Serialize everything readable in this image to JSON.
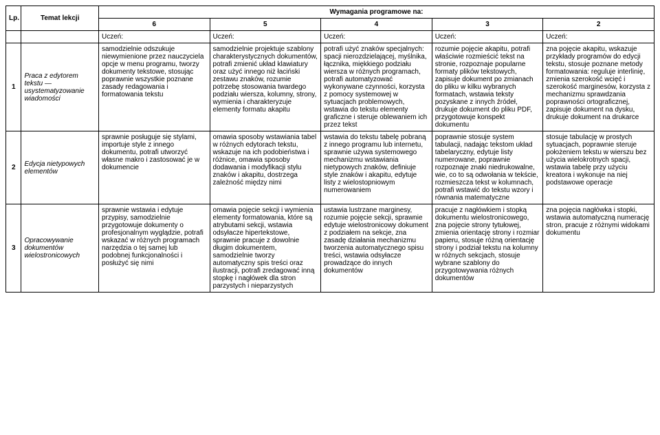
{
  "headers": {
    "lp": "Lp.",
    "temat": "Temat lekcji",
    "wymagania": "Wymagania programowe na:",
    "grades": [
      "6",
      "5",
      "4",
      "3",
      "2"
    ],
    "uczen": "Uczeń:"
  },
  "rows": [
    {
      "lp": "1",
      "temat": "Praca z edytorem tekstu — usystematyzowanie wiadomości",
      "c6": "samodzielnie odszukuje niewymienione przez nauczyciela opcje w menu programu, tworzy dokumenty tekstowe, stosując poprawnie wszystkie poznane zasady redagowania i formatowania tekstu",
      "c5": "samodzielnie projektuje szablony charakterystycznych dokumentów, potrafi zmienić układ klawiatury oraz użyć innego niż łaciński zestawu znaków, rozumie potrzebę stosowania twardego podziału wiersza, kolumny, strony, wymienia i charakteryzuje elementy formatu akapitu",
      "c4": "potrafi użyć znaków specjalnych: spacji nierozdzielającej, myślnika, łącznika, miękkiego podziału wiersza w różnych programach, potrafi automatyzować wykonywane czynności, korzysta z pomocy systemowej w sytuacjach problemowych, wstawia do tekstu elementy graficzne i steruje oblewaniem ich przez tekst",
      "c3": "rozumie pojęcie akapitu, potrafi właściwie rozmieścić tekst na stronie, rozpoznaje popularne formaty plików tekstowych, zapisuje dokument po zmianach do pliku w kilku wybranych formatach, wstawia teksty pozyskane z innych źródeł, drukuje dokument do pliku PDF, przygotowuje konspekt dokumentu",
      "c2": "zna pojęcie akapitu, wskazuje przykłady programów do edycji tekstu, stosuje poznane metody formatowania: reguluje interlinię, zmienia szerokość wcięć i szerokość marginesów, korzysta z mechanizmu sprawdzania poprawności ortograficznej, zapisuje dokument na dysku, drukuje dokument na drukarce"
    },
    {
      "lp": "2",
      "temat": "Edycja nietypowych elementów",
      "c6": "sprawnie posługuje się stylami, importuje style z innego dokumentu, potrafi utworzyć własne makro i zastosować je w dokumencie",
      "c5": "omawia sposoby wstawiania tabel w różnych edytorach tekstu, wskazuje na ich podobieństwa i różnice, omawia sposoby dodawania i modyfikacji stylu znaków i akapitu, dostrzega zależność między nimi",
      "c4": "wstawia do tekstu tabelę pobraną z innego programu lub internetu, sprawnie używa systemowego mechanizmu wstawiania nietypowych znaków, definiuje style znaków i akapitu, edytuje listy z wielostopniowym numerowaniem",
      "c3": "poprawnie stosuje system tabulacji, nadając tekstom układ tabelaryczny, edytuje listy numerowane, poprawnie rozpoznaje znaki niedrukowalne, wie, co to są odwołania w tekście, rozmieszcza tekst w kolumnach, potrafi wstawić do tekstu wzory i równania matematyczne",
      "c2": "stosuje tabulację w prostych sytuacjach, poprawnie steruje położeniem tekstu w wierszu bez użycia wielokrotnych spacji, wstawia tabelę przy użyciu kreatora i wykonuje na niej podstawowe operacje"
    },
    {
      "lp": "3",
      "temat": "Opracowywanie dokumentów wielostronicowych",
      "c6": "sprawnie wstawia i edytuje przypisy, samodzielnie przygotowuje dokumenty o profesjonalnym wyglądzie, potrafi wskazać w różnych programach narzędzia o tej samej lub podobnej funkcjonalności i posłużyć się nimi",
      "c5": "omawia pojęcie sekcji i wymienia elementy formatowania, które są atrybutami sekcji, wstawia odsyłacze hipertekstowe, sprawnie pracuje z dowolnie długim dokumentem, samodzielnie tworzy automatyczny spis treści oraz ilustracji, potrafi zredagować inną stopkę i nagłówek dla stron parzystych i nieparzystych",
      "c4": "ustawia lustrzane marginesy, rozumie pojęcie sekcji, sprawnie edytuje wielostronicowy dokument z podziałem na sekcje, zna zasadę działania mechanizmu tworzenia automatycznego spisu treści, wstawia odsyłacze prowadzące do innych dokumentów",
      "c3": "pracuje z nagłówkiem i stopką dokumentu wielostronicowego, zna pojęcie strony tytułowej, zmienia orientację strony i rozmiar papieru, stosuje różną orientację strony i podział tekstu na kolumny w różnych sekcjach, stosuje wybrane szablony do przygotowywania różnych dokumentów",
      "c2": "zna pojęcia nagłówka i stopki, wstawia automatyczną numerację stron, pracuje z różnymi widokami dokumentu"
    }
  ]
}
